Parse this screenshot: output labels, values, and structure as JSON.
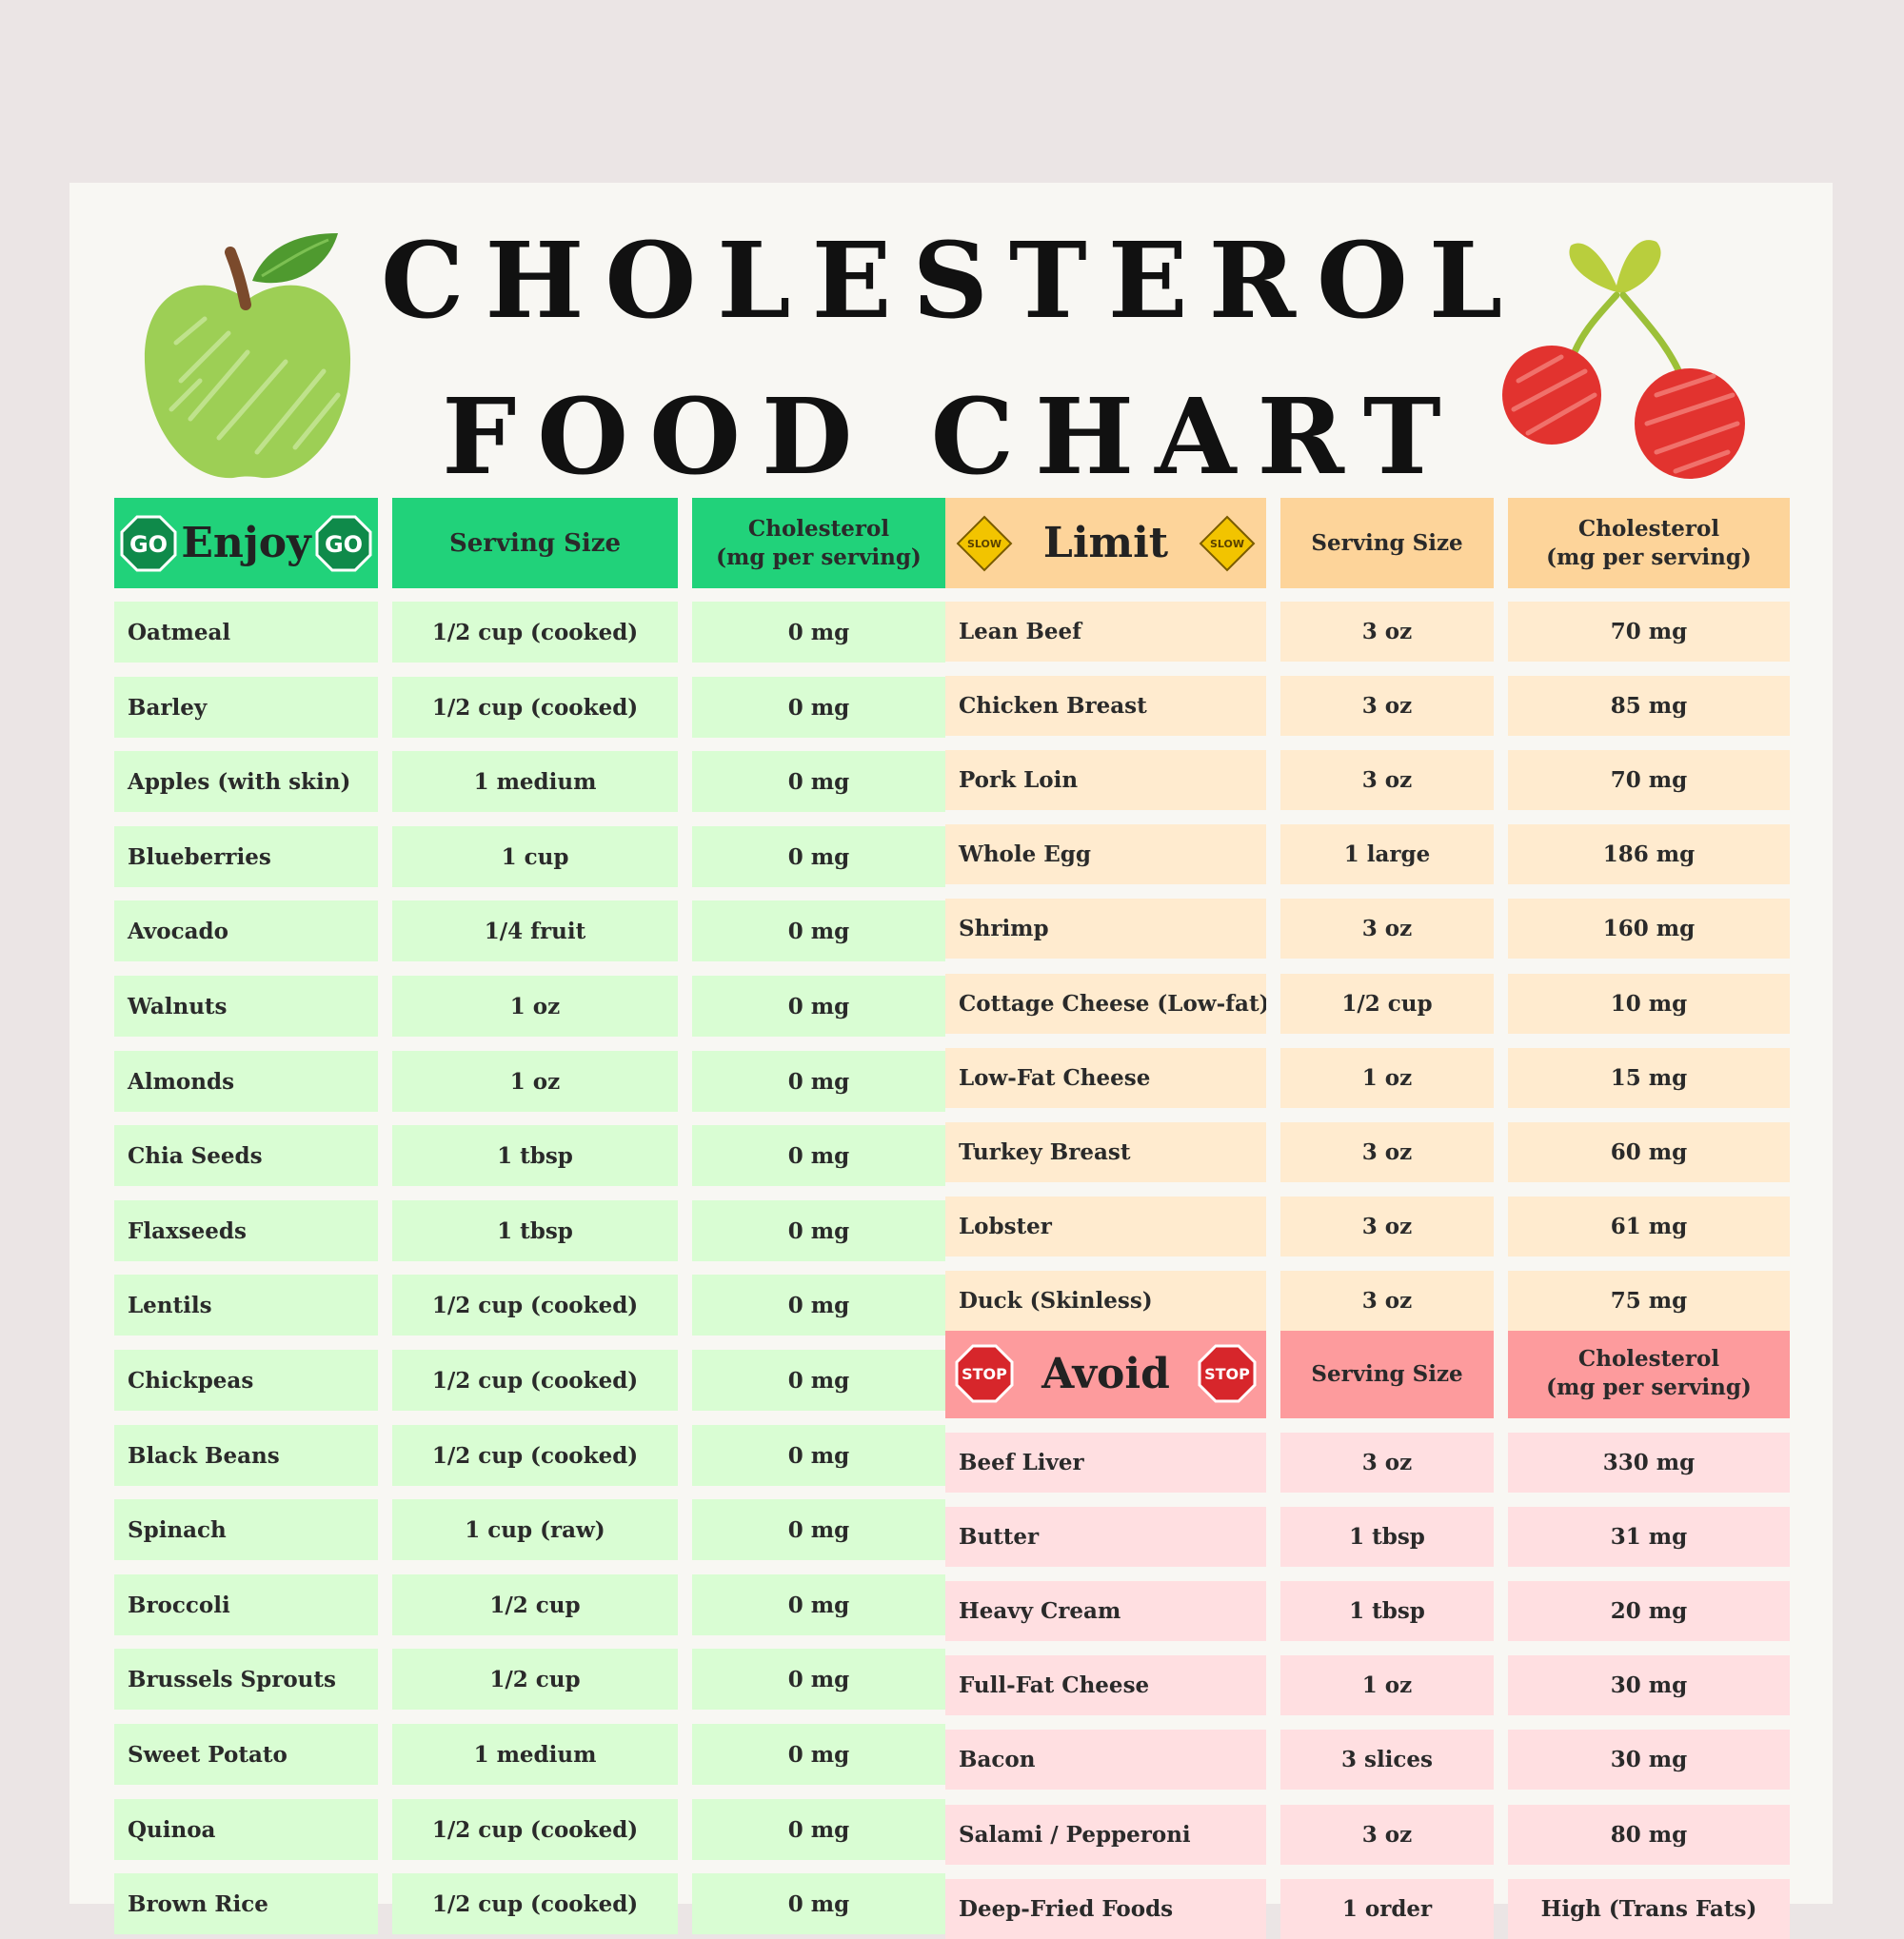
{
  "title": {
    "line1": "CHOLESTEROL",
    "line2": "FOOD CHART"
  },
  "colors": {
    "page_bg": "#ebe5e5",
    "sheet_bg": "#f8f7f3",
    "go_header": "#21d27a",
    "go_row": "#d9fdd3",
    "limit_header": "#fdd49a",
    "limit_row": "#ffebcf",
    "avoid_header": "#fd9b9d",
    "avoid_row": "#ffdfe1"
  },
  "icons": [
    "apple-icon",
    "cherries-icon",
    "go-sign-icon",
    "slow-sign-icon",
    "stop-sign-icon"
  ],
  "enjoy": {
    "title": "Enjoy",
    "badge": "GO",
    "col_serving": "Serving Size",
    "col_chol_1": "Cholesterol",
    "col_chol_2": "(mg per serving)",
    "rows": [
      [
        "Oatmeal",
        "1/2 cup (cooked)",
        "0 mg"
      ],
      [
        "Barley",
        "1/2 cup (cooked)",
        "0 mg"
      ],
      [
        "Apples (with skin)",
        "1 medium",
        "0 mg"
      ],
      [
        "Blueberries",
        "1 cup",
        "0 mg"
      ],
      [
        "Avocado",
        "1/4 fruit",
        "0 mg"
      ],
      [
        "Walnuts",
        "1 oz",
        "0 mg"
      ],
      [
        "Almonds",
        "1 oz",
        "0 mg"
      ],
      [
        "Chia Seeds",
        "1 tbsp",
        "0 mg"
      ],
      [
        "Flaxseeds",
        "1 tbsp",
        "0 mg"
      ],
      [
        "Lentils",
        "1/2 cup (cooked)",
        "0 mg"
      ],
      [
        "Chickpeas",
        "1/2 cup (cooked)",
        "0 mg"
      ],
      [
        "Black Beans",
        "1/2 cup (cooked)",
        "0 mg"
      ],
      [
        "Spinach",
        "1 cup (raw)",
        "0 mg"
      ],
      [
        "Broccoli",
        "1/2 cup",
        "0 mg"
      ],
      [
        "Brussels Sprouts",
        "1/2 cup",
        "0 mg"
      ],
      [
        "Sweet Potato",
        "1 medium",
        "0 mg"
      ],
      [
        "Quinoa",
        "1/2 cup (cooked)",
        "0 mg"
      ],
      [
        "Brown Rice",
        "1/2 cup (cooked)",
        "0 mg"
      ]
    ]
  },
  "limit": {
    "title": "Limit",
    "badge": "SLOW",
    "col_serving": "Serving Size",
    "col_chol_1": "Cholesterol",
    "col_chol_2": "(mg per serving)",
    "rows": [
      [
        "Lean Beef",
        "3 oz",
        "70 mg"
      ],
      [
        "Chicken Breast",
        "3 oz",
        "85 mg"
      ],
      [
        "Pork Loin",
        "3 oz",
        "70 mg"
      ],
      [
        "Whole Egg",
        "1 large",
        "186 mg"
      ],
      [
        "Shrimp",
        "3 oz",
        "160 mg"
      ],
      [
        "Cottage Cheese (Low-fat)",
        "1/2 cup",
        "10 mg"
      ],
      [
        "Low-Fat Cheese",
        "1 oz",
        "15 mg"
      ],
      [
        "Turkey Breast",
        "3 oz",
        "60 mg"
      ],
      [
        "Lobster",
        "3 oz",
        "61 mg"
      ],
      [
        "Duck (Skinless)",
        "3 oz",
        "75 mg"
      ]
    ]
  },
  "avoid": {
    "title": "Avoid",
    "badge": "STOP",
    "col_serving": "Serving Size",
    "col_chol_1": "Cholesterol",
    "col_chol_2": "(mg per serving)",
    "rows": [
      [
        "Beef Liver",
        "3 oz",
        "330 mg"
      ],
      [
        "Butter",
        "1 tbsp",
        "31 mg"
      ],
      [
        "Heavy Cream",
        "1 tbsp",
        "20 mg"
      ],
      [
        "Full-Fat Cheese",
        "1 oz",
        "30 mg"
      ],
      [
        "Bacon",
        "3 slices",
        "30 mg"
      ],
      [
        "Salami / Pepperoni",
        "3 oz",
        "80 mg"
      ],
      [
        "Deep-Fried Foods",
        "1 order",
        "High (Trans Fats)"
      ]
    ]
  }
}
